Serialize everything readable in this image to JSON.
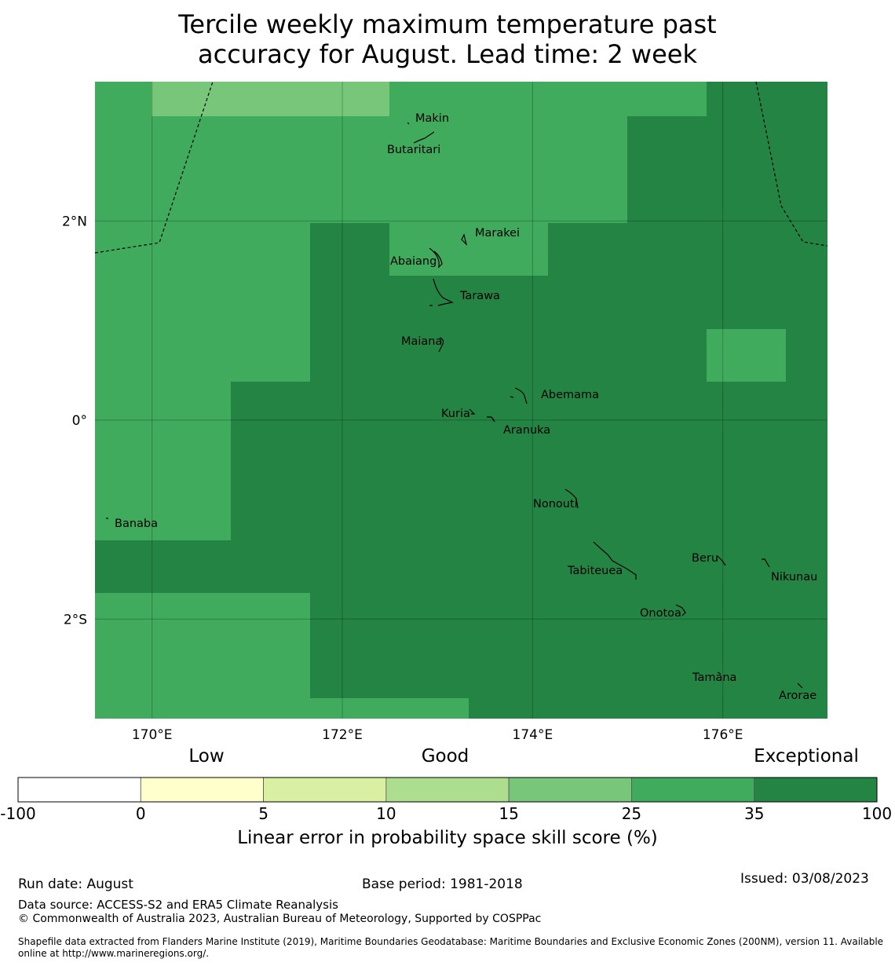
{
  "title": {
    "line1": "Tercile weekly maximum temperature past",
    "line2": "accuracy for August. Lead time: 2 week"
  },
  "map": {
    "lon_range": [
      169.4,
      177.1
    ],
    "lat_range": [
      -3.0,
      3.4
    ],
    "lon_ticks": [
      {
        "v": 170,
        "label": "170°E"
      },
      {
        "v": 172,
        "label": "172°E"
      },
      {
        "v": 174,
        "label": "174°E"
      },
      {
        "v": 176,
        "label": "176°E"
      }
    ],
    "lat_ticks": [
      {
        "v": 2,
        "label": "2°N"
      },
      {
        "v": 0,
        "label": "0°"
      },
      {
        "v": -2,
        "label": "2°S"
      }
    ],
    "grid": true,
    "base_color": "#238443",
    "skill_regions": [
      {
        "color": "#41ab5d",
        "cells": [
          [
            169.4,
            3.4,
            177.1,
            -3.0
          ]
        ]
      }
    ],
    "places": [
      {
        "name": "Makin",
        "lon": 172.95,
        "lat": 3.08
      },
      {
        "name": "Butaritari",
        "lon": 172.75,
        "lat": 2.98
      },
      {
        "name": "Marakei",
        "lon": 173.3,
        "lat": 2.0
      },
      {
        "name": "Abaiang",
        "lon": 172.95,
        "lat": 1.85
      },
      {
        "name": "Tarawa",
        "lon": 173.05,
        "lat": 1.45
      },
      {
        "name": "Maiana",
        "lon": 173.0,
        "lat": 0.95
      },
      {
        "name": "Abemama",
        "lon": 173.9,
        "lat": 0.4
      },
      {
        "name": "Kuria",
        "lon": 173.4,
        "lat": 0.22
      },
      {
        "name": "Aranuka",
        "lon": 173.6,
        "lat": 0.15
      },
      {
        "name": "Nonouti",
        "lon": 174.45,
        "lat": -0.65
      },
      {
        "name": "Banaba",
        "lon": 169.55,
        "lat": -0.87
      },
      {
        "name": "Beru",
        "lon": 176.0,
        "lat": -1.35
      },
      {
        "name": "Nikunau",
        "lon": 176.45,
        "lat": -1.35
      },
      {
        "name": "Tabiteuea",
        "lon": 174.8,
        "lat": -1.35
      },
      {
        "name": "Onotoa",
        "lon": 175.55,
        "lat": -1.8
      },
      {
        "name": "Tamana",
        "lon": 175.95,
        "lat": -2.5
      },
      {
        "name": "Arorae",
        "lon": 176.8,
        "lat": -2.65
      }
    ]
  },
  "colorbar": {
    "categories": [
      {
        "label": "Low",
        "x": 263
      },
      {
        "label": "Good",
        "x": 567
      },
      {
        "label": "Exceptional",
        "x": 1027
      }
    ],
    "bins": [
      {
        "color": "#ffffff"
      },
      {
        "color": "#ffffcc"
      },
      {
        "color": "#d9f0a3"
      },
      {
        "color": "#addd8e"
      },
      {
        "color": "#78c679"
      },
      {
        "color": "#41ab5d"
      },
      {
        "color": "#238443"
      }
    ],
    "ticks": [
      "-100",
      "0",
      "5",
      "10",
      "15",
      "25",
      "35",
      "100"
    ],
    "label": "Linear error in probability space skill score (%)"
  },
  "footer": {
    "run_date": "Run date: August",
    "base_period": "Base period: 1981-2018",
    "issued": "Issued: 03/08/2023",
    "data_source": "Data source: ACCESS-S2 and ERA5 Climate Reanalysis",
    "copyright": "© Commonwealth of Australia 2023, Australian Bureau of Meteorology, Supported by COSPPac",
    "shapefile": "Shapefile data extracted from Flanders Marine Institute (2019), Maritime Boundaries Geodatabase: Maritime Boundaries and Exclusive Economic Zones (200NM), version 11. Available online at http://www.marineregions.org/."
  }
}
